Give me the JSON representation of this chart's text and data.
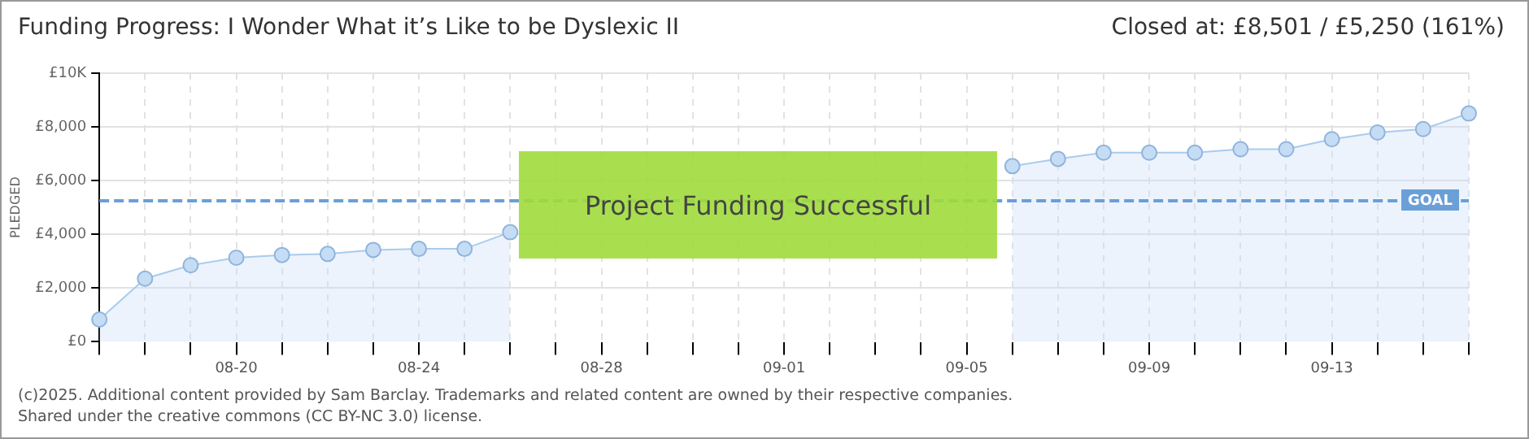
{
  "chart_data": {
    "type": "area",
    "title": "Funding Progress: I Wonder What it’s Like to be Dyslexic II",
    "subtitle": "Closed at:  £8,501 /  £5,250 (161%)",
    "ylabel": "PLEDGED",
    "categories": [
      null,
      null,
      null,
      "08-20",
      null,
      null,
      null,
      "08-24",
      null,
      null,
      null,
      "08-28",
      null,
      null,
      null,
      "09-01",
      null,
      null,
      null,
      "09-05",
      null,
      null,
      null,
      "09-09",
      null,
      null,
      null,
      "09-13",
      null,
      null,
      null
    ],
    "series": [
      {
        "color": "#a9cbee",
        "values": [
          830,
          2350,
          2850,
          3130,
          3230,
          3270,
          3420,
          3460,
          3460,
          4080,
          null,
          null,
          null,
          null,
          null,
          null,
          null,
          null,
          null,
          null,
          6540,
          6810,
          7040,
          7040,
          7040,
          7170,
          7170,
          7540,
          7790,
          7920,
          8500
        ]
      }
    ],
    "ylim": [
      0,
      10000
    ],
    "yticks": [
      {
        "value": 0,
        "label": "£0"
      },
      {
        "value": 2000,
        "label": "£2,000"
      },
      {
        "value": 4000,
        "label": "£4,000"
      },
      {
        "value": 6000,
        "label": "£6,000"
      },
      {
        "value": 8000,
        "label": "£8,000"
      },
      {
        "value": 10000,
        "label": "£10K"
      }
    ],
    "ref_lines": [
      {
        "axis": "y",
        "value": 5250,
        "label": "GOAL",
        "color": "#6a9fd8",
        "line_style": "dashed"
      }
    ],
    "annotations": [
      "Project Funding Successful",
      "(c)2025. Additional content provided by Sam Barclay. Trademarks and related content are owned by their respective companies.",
      "Shared under the creative commons (CC BY-NC 3.0) license."
    ],
    "grid": true,
    "legend": false,
    "marker": "circle",
    "line_style": "solid"
  }
}
